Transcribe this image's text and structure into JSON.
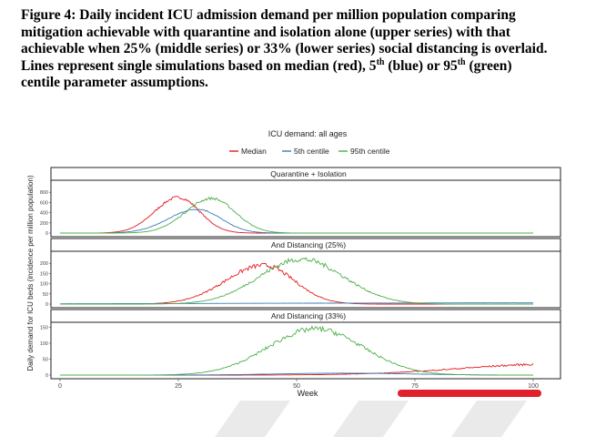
{
  "caption": {
    "line1": "Figure 4: Daily incident ICU admission demand per million population comparing",
    "line2": "mitigation achievable with quarantine and isolation alone (upper series) with that",
    "line3": "achievable when 25% (middle series) or 33% (lower series) social distancing is overlaid.",
    "line4_a": "Lines represent single simulations based on median (red), 5",
    "line4_sup1": "th",
    "line4_b": " (blue) or 95",
    "line4_sup2": "th",
    "line4_c": " (green)",
    "line5": "centile parameter assumptions."
  },
  "chart_data": {
    "type": "line",
    "title": "ICU demand: all ages",
    "xlabel": "Week",
    "ylabel": "Daily demand for ICU beds (incidence per million population)",
    "xlim": [
      0,
      105
    ],
    "xticks": [
      0,
      25,
      50,
      75,
      100
    ],
    "legend": [
      {
        "name": "Median",
        "color": "#e41a1c"
      },
      {
        "name": "5th centile",
        "color": "#377eb8"
      },
      {
        "name": "95th centile",
        "color": "#4daf4a"
      }
    ],
    "panels": [
      {
        "title": "Quarantine + Isolation",
        "ylim": [
          0,
          1000
        ],
        "yticks": [
          0,
          200,
          400,
          600,
          800
        ],
        "series": [
          {
            "name": "Median",
            "color": "#e41a1c",
            "peak_week": 25,
            "peak": 700,
            "width_left": 5,
            "width_right": 4.5,
            "noise": 0.04
          },
          {
            "name": "5th centile",
            "color": "#377eb8",
            "peak_week": 29,
            "peak": 470,
            "width_left": 6,
            "width_right": 5,
            "noise": 0.03
          },
          {
            "name": "95th centile",
            "color": "#4daf4a",
            "peak_week": 32,
            "peak": 680,
            "width_left": 5.5,
            "width_right": 5,
            "noise": 0.04
          }
        ]
      },
      {
        "title": "And Distancing (25%)",
        "ylim": [
          0,
          250
        ],
        "yticks": [
          0,
          50,
          100,
          150,
          200
        ],
        "series": [
          {
            "name": "Median",
            "color": "#e41a1c",
            "peak_week": 43,
            "peak": 190,
            "width_left": 8,
            "width_right": 6.5,
            "noise": 0.06
          },
          {
            "name": "5th centile",
            "color": "#377eb8",
            "peak_week": 100,
            "peak": 6,
            "width_left": 60,
            "width_right": 60,
            "noise": 0.05
          },
          {
            "name": "95th centile",
            "color": "#4daf4a",
            "peak_week": 51,
            "peak": 220,
            "width_left": 9,
            "width_right": 9,
            "noise": 0.06
          }
        ]
      },
      {
        "title": "And Distancing (33%)",
        "ylim": [
          0,
          160
        ],
        "yticks": [
          0,
          50,
          100,
          150
        ],
        "series": [
          {
            "name": "Median",
            "color": "#e41a1c",
            "peak_week": 105,
            "peak": 35,
            "width_left": 20,
            "width_right": 20,
            "noise": 0.1
          },
          {
            "name": "5th centile",
            "color": "#377eb8",
            "peak_week": 60,
            "peak": 6,
            "width_left": 14,
            "width_right": 14,
            "noise": 0.05
          },
          {
            "name": "95th centile",
            "color": "#4daf4a",
            "peak_week": 54,
            "peak": 145,
            "width_left": 10,
            "width_right": 10,
            "noise": 0.06
          }
        ]
      }
    ]
  }
}
